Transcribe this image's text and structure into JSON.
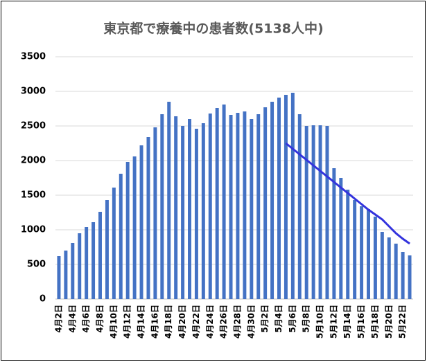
{
  "chart_data": {
    "type": "bar",
    "title": "東京都で療養中の患者数(5138人中)",
    "categories": [
      "4月2日",
      null,
      "4月4日",
      null,
      "4月6日",
      null,
      "4月8日",
      null,
      "4月10日",
      null,
      "4月12日",
      null,
      "4月14日",
      null,
      "4月16日",
      null,
      "4月18日",
      null,
      "4月20日",
      null,
      "4月22日",
      null,
      "4月24日",
      null,
      "4月26日",
      null,
      "4月28日",
      null,
      "4月30日",
      null,
      "5月2日",
      null,
      "5月4日",
      null,
      "5月6日",
      null,
      "5月8日",
      null,
      "5月10日",
      null,
      "5月12日",
      null,
      "5月14日",
      null,
      "5月16日",
      null,
      "5月18日",
      null,
      "5月20日",
      null,
      "5月22日",
      null
    ],
    "series": [
      {
        "color": "#4472c4",
        "values": [
          620,
          700,
          810,
          950,
          1040,
          1110,
          1260,
          1430,
          1610,
          1810,
          1980,
          2060,
          2220,
          2340,
          2480,
          2670,
          2850,
          2640,
          2500,
          2600,
          2460,
          2540,
          2680,
          2760,
          2810,
          2660,
          2690,
          2710,
          2600,
          2670,
          2770,
          2850,
          2910,
          2950,
          2980,
          2670,
          2500,
          2510,
          2510,
          2500,
          1890,
          1750,
          1580,
          1430,
          1340,
          1300,
          1190,
          970,
          890,
          800,
          680,
          630
        ]
      },
      {
        "type": "line",
        "color": "#3333dd",
        "values": [
          null,
          null,
          null,
          null,
          null,
          null,
          null,
          null,
          null,
          null,
          null,
          null,
          null,
          null,
          null,
          null,
          null,
          null,
          null,
          null,
          null,
          null,
          null,
          null,
          null,
          null,
          null,
          null,
          null,
          null,
          null,
          null,
          null,
          2250,
          2170,
          2090,
          2010,
          1930,
          1850,
          1770,
          1690,
          1610,
          1530,
          1450,
          1370,
          1290,
          1220,
          1150,
          1050,
          950,
          870,
          800
        ]
      }
    ],
    "ylim": [
      0,
      3500
    ],
    "yticks": [
      0,
      500,
      1000,
      1500,
      2000,
      2500,
      3000,
      3500
    ],
    "grid": true
  }
}
